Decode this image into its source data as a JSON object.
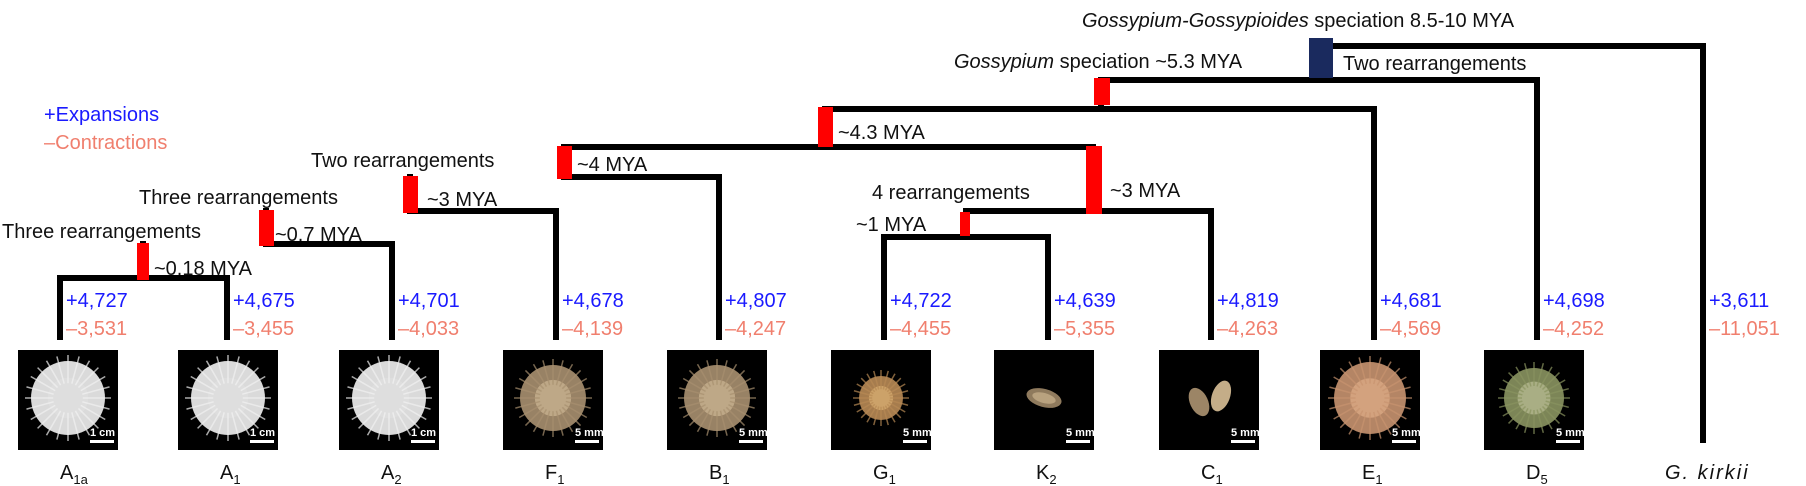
{
  "legend": {
    "expansions": "+Expansions",
    "contractions": "–Contractions"
  },
  "colors": {
    "branch": "#000000",
    "event": "#ff0000",
    "root_event": "#1a2a5e",
    "expansion": "#1a1aff",
    "contraction": "#f07f6e",
    "photo_bg": "#000000"
  },
  "nodes": {
    "root": {
      "label_italic": "Gossypium-Gossypioides",
      "label_rest": " speciation 8.5-10 MYA"
    },
    "gossypium": {
      "label_italic": "Gossypium",
      "label_rest": " speciation ~5.3 MYA",
      "right_label": "Two rearrangements"
    },
    "n43": {
      "age": "~4.3 MYA"
    },
    "n4": {
      "age": "~4 MYA",
      "left_label": "Two rearrangements"
    },
    "n3a": {
      "age": "~3 MYA",
      "left_label": "Three rearrangements"
    },
    "n07": {
      "age": "~0.7 MYA",
      "left_label": "Three rearrangements"
    },
    "n018": {
      "age": "~0.18 MYA"
    },
    "n3b": {
      "age": "~3 MYA"
    },
    "n1": {
      "age": "~1 MYA",
      "top_label": "4 rearrangements"
    }
  },
  "tips": [
    {
      "main": "A",
      "sub": "1a",
      "exp": "+4,727",
      "con": "–3,531",
      "scale": "1 cm",
      "photo": "white-fluffy-lint"
    },
    {
      "main": "A",
      "sub": "1",
      "exp": "+4,675",
      "con": "–3,455",
      "scale": "1 cm",
      "photo": "white-fluffy-lint"
    },
    {
      "main": "A",
      "sub": "2",
      "exp": "+4,701",
      "con": "–4,033",
      "scale": "1 cm",
      "photo": "white-fluffy-lint"
    },
    {
      "main": "F",
      "sub": "1",
      "exp": "+4,678",
      "con": "–4,139",
      "scale": "5 mm",
      "photo": "tan-fuzzy-seed"
    },
    {
      "main": "B",
      "sub": "1",
      "exp": "+4,807",
      "con": "–4,247",
      "scale": "5 mm",
      "photo": "tan-fuzzy-seed"
    },
    {
      "main": "G",
      "sub": "1",
      "exp": "+4,722",
      "con": "–4,455",
      "scale": "5 mm",
      "photo": "small-brown-seed"
    },
    {
      "main": "K",
      "sub": "2",
      "exp": "+4,639",
      "con": "–5,355",
      "scale": "5 mm",
      "photo": "bare-seed"
    },
    {
      "main": "C",
      "sub": "1",
      "exp": "+4,819",
      "con": "–4,263",
      "scale": "5 mm",
      "photo": "two-bare-seeds"
    },
    {
      "main": "E",
      "sub": "1",
      "exp": "+4,681",
      "con": "–4,569",
      "scale": "5 mm",
      "photo": "orange-fuzzy-seed"
    },
    {
      "main": "D",
      "sub": "5",
      "exp": "+4,698",
      "con": "–4,252",
      "scale": "5 mm",
      "photo": "green-fuzzy-seed"
    },
    {
      "main": "G. kirkii",
      "sub": "",
      "exp": "+3,611",
      "con": "–11,051",
      "scale": "",
      "photo": ""
    }
  ]
}
